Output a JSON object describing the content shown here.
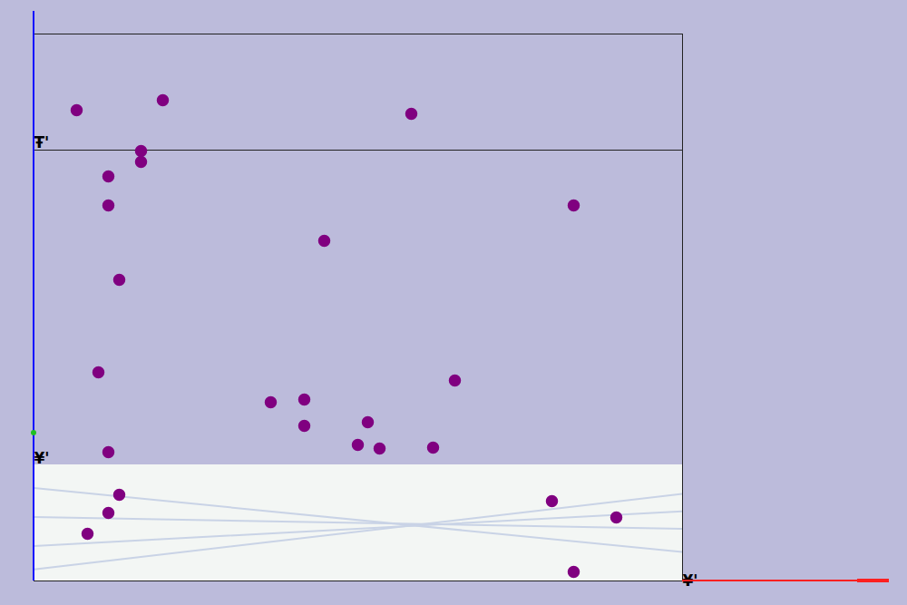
{
  "chart_data": {
    "type": "scatter",
    "color": "#800080",
    "xlim": [
      0,
      715
    ],
    "ylim": [
      0,
      603
    ],
    "xticks": [],
    "yticks": [],
    "tick_labels": false,
    "grid": false,
    "x": [
      47,
      142,
      416,
      118,
      118,
      82,
      82,
      595,
      320,
      94,
      71,
      464,
      261,
      298,
      298,
      368,
      357,
      381,
      440,
      82,
      94,
      82,
      59,
      571,
      642,
      595
    ],
    "values": [
      519,
      530,
      515,
      474,
      462,
      446,
      414,
      414,
      375,
      332,
      230,
      221,
      197,
      200,
      171,
      175,
      150,
      146,
      147,
      142,
      95,
      75,
      52,
      88,
      70,
      10
    ],
    "hline": 475,
    "image_band": [
      0,
      128
    ],
    "annotations": [
      {
        "text": "Ŧ'",
        "x": 0,
        "y": 483
      },
      {
        "text": "¥'",
        "x": 0,
        "y": 135
      },
      {
        "text": "¥'",
        "x": 715,
        "y": 0
      }
    ]
  }
}
